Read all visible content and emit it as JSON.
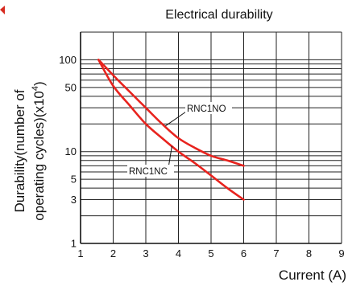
{
  "chart_data": {
    "type": "line",
    "title": "Electrical durability",
    "xlabel": "Current (A)",
    "ylabel_line1": "Durability(number of",
    "ylabel_line2": "operating cycles)(x10",
    "ylabel_exponent": "4",
    "ylabel_close": ")",
    "x_scale": "linear",
    "y_scale": "log",
    "xlim": [
      1,
      9
    ],
    "ylim": [
      1,
      200
    ],
    "grid": true,
    "x_ticks": [
      1,
      2,
      3,
      4,
      5,
      6,
      7,
      8,
      9
    ],
    "y_tick_labels": [
      {
        "value": 1,
        "label": "1"
      },
      {
        "value": 3,
        "label": "3"
      },
      {
        "value": 5,
        "label": "5"
      },
      {
        "value": 10,
        "label": "10"
      },
      {
        "value": 50,
        "label": "50"
      },
      {
        "value": 100,
        "label": "100"
      }
    ],
    "series": [
      {
        "name": "RNC1NO",
        "color": "#e8231e",
        "x": [
          1.55,
          2.0,
          2.5,
          3.0,
          3.5,
          4.0,
          4.5,
          5.0,
          5.5,
          6.0
        ],
        "y": [
          100,
          68,
          45,
          30,
          20,
          14,
          11,
          9,
          8,
          7
        ]
      },
      {
        "name": "RNC1NC",
        "color": "#e8231e",
        "x": [
          1.55,
          2.0,
          2.5,
          3.0,
          3.5,
          4.0,
          4.5,
          5.0,
          5.5,
          6.0
        ],
        "y": [
          100,
          52,
          32,
          20,
          14,
          10,
          7.5,
          5.5,
          4,
          3
        ]
      }
    ],
    "annotations": [
      {
        "text": "RNC1NO",
        "series": "RNC1NO"
      },
      {
        "text": "RNC1NC",
        "series": "RNC1NC"
      }
    ]
  }
}
